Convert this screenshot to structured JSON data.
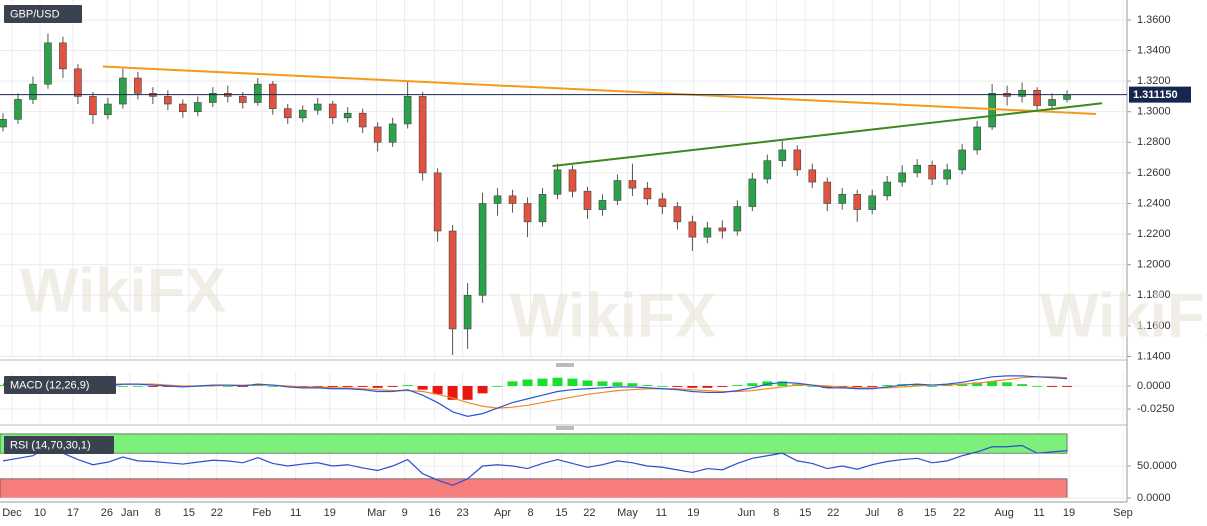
{
  "chart_data": [
    {
      "type": "candlestick",
      "title": "GBP/USD",
      "x": [
        0,
        1,
        2,
        3,
        4,
        5,
        6,
        7,
        8,
        9,
        10,
        11,
        12,
        13,
        14,
        15,
        16,
        17,
        18,
        19,
        20,
        21,
        22,
        23,
        24,
        25,
        26,
        27,
        28,
        29,
        30,
        31,
        32,
        33,
        34,
        35,
        36,
        37,
        38,
        39,
        40,
        41,
        42,
        43,
        44,
        45,
        46,
        47,
        48,
        49,
        50,
        51,
        52,
        53,
        54,
        55,
        56,
        57,
        58,
        59,
        60,
        61,
        62,
        63,
        64,
        65,
        66,
        67,
        68,
        69,
        70,
        71
      ],
      "open": [
        1.29,
        1.295,
        1.308,
        1.318,
        1.345,
        1.328,
        1.31,
        1.298,
        1.305,
        1.322,
        1.312,
        1.31,
        1.305,
        1.3,
        1.306,
        1.312,
        1.31,
        1.306,
        1.318,
        1.302,
        1.296,
        1.301,
        1.305,
        1.296,
        1.299,
        1.29,
        1.28,
        1.292,
        1.31,
        1.26,
        1.222,
        1.158,
        1.18,
        1.24,
        1.245,
        1.24,
        1.228,
        1.246,
        1.262,
        1.248,
        1.236,
        1.242,
        1.255,
        1.25,
        1.243,
        1.238,
        1.228,
        1.218,
        1.224,
        1.222,
        1.238,
        1.256,
        1.268,
        1.275,
        1.262,
        1.254,
        1.24,
        1.246,
        1.236,
        1.245,
        1.254,
        1.26,
        1.265,
        1.256,
        1.262,
        1.275,
        1.29,
        1.312,
        1.31,
        1.314,
        1.304,
        1.308
      ],
      "high": [
        1.299,
        1.312,
        1.323,
        1.351,
        1.349,
        1.331,
        1.313,
        1.309,
        1.328,
        1.326,
        1.316,
        1.314,
        1.308,
        1.31,
        1.316,
        1.317,
        1.313,
        1.322,
        1.32,
        1.305,
        1.304,
        1.309,
        1.307,
        1.303,
        1.302,
        1.293,
        1.296,
        1.32,
        1.313,
        1.263,
        1.226,
        1.188,
        1.247,
        1.25,
        1.249,
        1.244,
        1.25,
        1.266,
        1.265,
        1.251,
        1.246,
        1.259,
        1.266,
        1.254,
        1.247,
        1.241,
        1.232,
        1.228,
        1.229,
        1.242,
        1.26,
        1.272,
        1.281,
        1.278,
        1.266,
        1.257,
        1.25,
        1.249,
        1.249,
        1.258,
        1.265,
        1.269,
        1.268,
        1.266,
        1.279,
        1.294,
        1.318,
        1.317,
        1.319,
        1.316,
        1.312,
        1.314
      ],
      "low": [
        1.287,
        1.292,
        1.305,
        1.315,
        1.322,
        1.305,
        1.292,
        1.295,
        1.302,
        1.308,
        1.305,
        1.301,
        1.296,
        1.297,
        1.303,
        1.306,
        1.302,
        1.304,
        1.298,
        1.292,
        1.293,
        1.298,
        1.292,
        1.293,
        1.286,
        1.274,
        1.277,
        1.289,
        1.255,
        1.215,
        1.141,
        1.145,
        1.175,
        1.232,
        1.234,
        1.218,
        1.225,
        1.243,
        1.244,
        1.23,
        1.232,
        1.239,
        1.245,
        1.239,
        1.233,
        1.223,
        1.209,
        1.214,
        1.217,
        1.219,
        1.235,
        1.253,
        1.264,
        1.258,
        1.25,
        1.235,
        1.236,
        1.228,
        1.233,
        1.242,
        1.251,
        1.257,
        1.252,
        1.252,
        1.259,
        1.272,
        1.288,
        1.304,
        1.306,
        1.3,
        1.301,
        1.306
      ],
      "close": [
        1.295,
        1.308,
        1.318,
        1.345,
        1.328,
        1.31,
        1.298,
        1.305,
        1.322,
        1.312,
        1.31,
        1.305,
        1.3,
        1.306,
        1.312,
        1.31,
        1.306,
        1.318,
        1.302,
        1.296,
        1.301,
        1.305,
        1.296,
        1.299,
        1.29,
        1.28,
        1.292,
        1.31,
        1.26,
        1.222,
        1.158,
        1.18,
        1.24,
        1.245,
        1.24,
        1.228,
        1.246,
        1.262,
        1.248,
        1.236,
        1.242,
        1.255,
        1.25,
        1.243,
        1.238,
        1.228,
        1.218,
        1.224,
        1.222,
        1.238,
        1.256,
        1.268,
        1.275,
        1.262,
        1.254,
        1.24,
        1.246,
        1.236,
        1.245,
        1.254,
        1.26,
        1.265,
        1.256,
        1.262,
        1.275,
        1.29,
        1.312,
        1.31,
        1.314,
        1.304,
        1.308,
        1.311
      ],
      "up_color": "#2aa24a",
      "down_color": "#e0533f",
      "xlim": [
        -0.2,
        75
      ],
      "xticks": [
        {
          "value": 0.6,
          "label": "Dec"
        },
        {
          "value": 2.47,
          "label": "10"
        },
        {
          "value": 4.67,
          "label": "17"
        },
        {
          "value": 6.93,
          "label": "26"
        },
        {
          "value": 8.47,
          "label": "Jan"
        },
        {
          "value": 10.33,
          "label": "8"
        },
        {
          "value": 12.4,
          "label": "15"
        },
        {
          "value": 14.27,
          "label": "22"
        },
        {
          "value": 17.27,
          "label": "Feb"
        },
        {
          "value": 19.53,
          "label": "11"
        },
        {
          "value": 21.8,
          "label": "19"
        },
        {
          "value": 24.93,
          "label": "Mar"
        },
        {
          "value": 26.8,
          "label": "9"
        },
        {
          "value": 28.8,
          "label": "16"
        },
        {
          "value": 30.67,
          "label": "23"
        },
        {
          "value": 33.33,
          "label": "Apr"
        },
        {
          "value": 35.2,
          "label": "8"
        },
        {
          "value": 37.27,
          "label": "15"
        },
        {
          "value": 39.13,
          "label": "22"
        },
        {
          "value": 41.67,
          "label": "May"
        },
        {
          "value": 43.93,
          "label": "11"
        },
        {
          "value": 46.07,
          "label": "19"
        },
        {
          "value": 49.6,
          "label": "Jun"
        },
        {
          "value": 51.6,
          "label": "8"
        },
        {
          "value": 53.53,
          "label": "15"
        },
        {
          "value": 55.4,
          "label": "22"
        },
        {
          "value": 58,
          "label": "Jul"
        },
        {
          "value": 59.87,
          "label": "8"
        },
        {
          "value": 61.87,
          "label": "15"
        },
        {
          "value": 63.8,
          "label": "22"
        },
        {
          "value": 66.8,
          "label": "Aug"
        },
        {
          "value": 69.13,
          "label": "11"
        },
        {
          "value": 71.13,
          "label": "19"
        },
        {
          "value": 74.73,
          "label": "Sep"
        }
      ],
      "ylim": [
        1.139,
        1.373
      ],
      "yticks": [
        {
          "value": 1.36,
          "label": "1.3600"
        },
        {
          "value": 1.34,
          "label": "1.3400"
        },
        {
          "value": 1.32,
          "label": "1.3200"
        },
        {
          "value": 1.3,
          "label": "1.3000"
        },
        {
          "value": 1.28,
          "label": "1.2800"
        },
        {
          "value": 1.26,
          "label": "1.2600"
        },
        {
          "value": 1.24,
          "label": "1.2400"
        },
        {
          "value": 1.22,
          "label": "1.2200"
        },
        {
          "value": 1.2,
          "label": "1.2000"
        },
        {
          "value": 1.18,
          "label": "1.1800"
        },
        {
          "value": 1.16,
          "label": "1.1600"
        },
        {
          "value": 1.14,
          "label": "1.1400"
        }
      ],
      "grid": true,
      "lines": [
        {
          "color": "#f59a1b",
          "x": [
            6.67,
            72.93
          ],
          "y": [
            1.3295,
            1.2985
          ]
        },
        {
          "color": "#3c8a1e",
          "x": [
            36.67,
            73.33
          ],
          "y": [
            1.2645,
            1.3055
          ]
        }
      ],
      "last_price": {
        "value": 1.31115,
        "label": "1.311150",
        "color": "#16264f"
      },
      "watermark": "WikiFX"
    },
    {
      "type": "macd",
      "title": "MACD (12,26,9)",
      "macd": [
        0.002,
        0.003,
        0.004,
        0.006,
        0.005,
        0.003,
        0.001,
        0.0,
        0.002,
        0.002,
        0.001,
        0.0,
        -0.001,
        0.0,
        0.001,
        0.001,
        0.0,
        0.002,
        0.001,
        -0.001,
        -0.002,
        -0.002,
        -0.003,
        -0.003,
        -0.004,
        -0.006,
        -0.006,
        -0.004,
        -0.01,
        -0.018,
        -0.028,
        -0.033,
        -0.03,
        -0.024,
        -0.018,
        -0.014,
        -0.01,
        -0.006,
        -0.004,
        -0.003,
        -0.002,
        -0.001,
        -0.001,
        -0.002,
        -0.003,
        -0.004,
        -0.006,
        -0.007,
        -0.007,
        -0.005,
        -0.002,
        0.002,
        0.004,
        0.003,
        0.001,
        -0.002,
        -0.002,
        -0.003,
        -0.003,
        -0.001,
        0.001,
        0.002,
        0.001,
        0.002,
        0.004,
        0.007,
        0.01,
        0.011,
        0.011,
        0.01,
        0.009,
        0.008
      ],
      "signal": [
        0.001,
        0.002,
        0.003,
        0.004,
        0.005,
        0.004,
        0.003,
        0.002,
        0.002,
        0.002,
        0.002,
        0.001,
        0.0,
        0.0,
        0.0,
        0.001,
        0.001,
        0.001,
        0.001,
        0.0,
        -0.001,
        -0.001,
        -0.002,
        -0.002,
        -0.003,
        -0.004,
        -0.005,
        -0.005,
        -0.006,
        -0.009,
        -0.013,
        -0.018,
        -0.022,
        -0.024,
        -0.023,
        -0.021,
        -0.018,
        -0.015,
        -0.012,
        -0.009,
        -0.007,
        -0.005,
        -0.004,
        -0.003,
        -0.003,
        -0.003,
        -0.004,
        -0.005,
        -0.006,
        -0.006,
        -0.005,
        -0.003,
        -0.001,
        0.001,
        0.001,
        0.0,
        -0.001,
        -0.002,
        -0.002,
        -0.002,
        -0.001,
        0.0,
        0.001,
        0.001,
        0.002,
        0.003,
        0.005,
        0.007,
        0.009,
        0.01,
        0.01,
        0.009
      ],
      "histogram": [
        0.001,
        0.001,
        0.001,
        0.002,
        0,
        -0.001,
        -0.002,
        -0.002,
        0,
        0,
        -0.001,
        -0.001,
        -0.001,
        0,
        0.001,
        0,
        -0.001,
        0.001,
        0,
        -0.001,
        -0.001,
        -0.001,
        -0.001,
        -0.001,
        -0.001,
        -0.002,
        -0.001,
        0.001,
        -0.004,
        -0.009,
        -0.015,
        -0.015,
        -0.008,
        0,
        0.005,
        0.007,
        0.008,
        0.009,
        0.008,
        0.006,
        0.005,
        0.004,
        0.003,
        0.001,
        0,
        -0.001,
        -0.002,
        -0.002,
        -0.001,
        0.001,
        0.003,
        0.005,
        0.005,
        0.002,
        0,
        -0.002,
        -0.001,
        -0.001,
        -0.001,
        0.001,
        0.002,
        0.002,
        0,
        0.001,
        0.002,
        0.004,
        0.005,
        0.004,
        0.002,
        0,
        -0.001,
        -0.001
      ],
      "macd_color": "#2a55d6",
      "signal_color": "#f08a24",
      "up_color": "#19e02a",
      "down_color": "#e8170f",
      "ylim": [
        -0.0391,
        0.0152
      ],
      "yticks": [
        {
          "value": 0,
          "label": "0.0000"
        },
        {
          "value": -0.025,
          "label": "-0.0250"
        }
      ]
    },
    {
      "type": "rsi",
      "title": "RSI (14,70,30,1)",
      "values": [
        58,
        62,
        66,
        80,
        70,
        60,
        52,
        56,
        64,
        58,
        57,
        55,
        53,
        56,
        59,
        58,
        55,
        63,
        54,
        50,
        53,
        55,
        50,
        52,
        47,
        43,
        50,
        60,
        38,
        28,
        20,
        30,
        50,
        52,
        50,
        46,
        54,
        60,
        54,
        48,
        52,
        58,
        55,
        50,
        48,
        44,
        40,
        46,
        44,
        54,
        62,
        66,
        70,
        58,
        54,
        46,
        50,
        45,
        52,
        57,
        60,
        62,
        55,
        58,
        66,
        72,
        80,
        80,
        82,
        70,
        72,
        74
      ],
      "color": "#2b4fd1",
      "overbought": 70,
      "oversold": 30,
      "overbought_color": "#7cf07a",
      "oversold_color": "#f77d7d",
      "ylim": [
        -3,
        103
      ],
      "yticks": [
        {
          "value": 50,
          "label": "50.0000"
        },
        {
          "value": 0,
          "label": "0.0000"
        }
      ]
    }
  ]
}
